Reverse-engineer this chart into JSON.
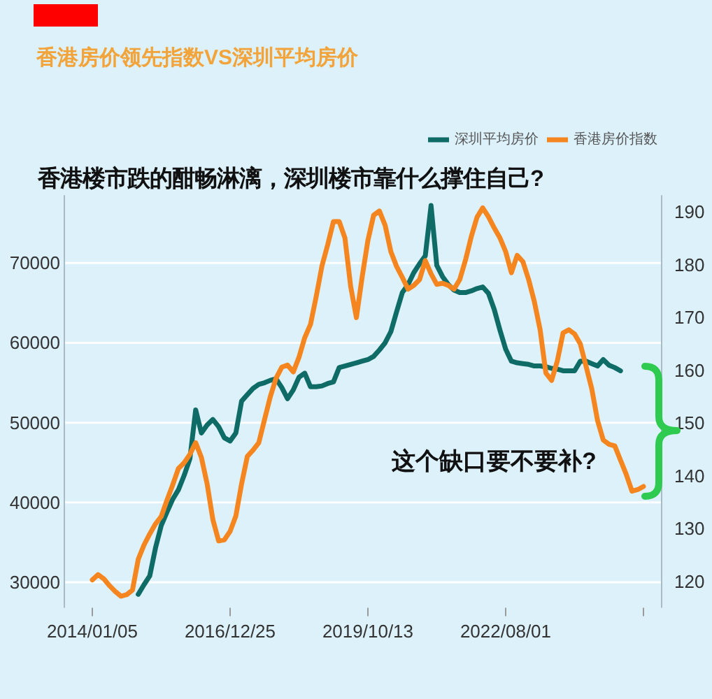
{
  "chart_data": {
    "type": "line",
    "title": "香港房价领先指数VS深圳平均房价",
    "subtitle": "香港楼市跌的酣畅淋漓，深圳楼市靠什么撑住自己?",
    "annotations": [
      "这个缺口要不要补?"
    ],
    "categories": [
      "2014/01/05",
      null,
      null,
      null,
      null,
      null,
      null,
      null,
      null,
      null,
      null,
      null,
      null,
      null,
      null,
      null,
      null,
      null,
      null,
      null,
      null,
      null,
      null,
      null,
      "2016/12/25",
      null,
      null,
      null,
      null,
      null,
      null,
      null,
      null,
      null,
      null,
      null,
      null,
      null,
      null,
      null,
      null,
      null,
      null,
      null,
      null,
      null,
      null,
      null,
      "2019/10/13",
      null,
      null,
      null,
      null,
      null,
      null,
      null,
      null,
      null,
      null,
      null,
      null,
      null,
      null,
      null,
      null,
      null,
      null,
      null,
      null,
      null,
      null,
      null,
      "2022/08/01",
      null,
      null,
      null,
      null,
      null,
      null,
      null,
      null,
      null,
      null,
      null,
      null,
      null,
      null,
      null,
      null,
      null,
      null,
      null,
      null,
      null,
      null,
      null,
      null
    ],
    "series": [
      {
        "name": "深圳平均房价",
        "color": "#0f6b66",
        "values": [
          null,
          null,
          null,
          null,
          null,
          null,
          null,
          null,
          28500,
          29700,
          30800,
          34300,
          37100,
          38800,
          40400,
          41600,
          43400,
          45500,
          51600,
          48700,
          49700,
          50400,
          49500,
          48100,
          47700,
          48700,
          52700,
          53500,
          54300,
          54800,
          55000,
          55300,
          55500,
          54400,
          53000,
          54100,
          55700,
          56200,
          54500,
          54500,
          54600,
          54900,
          55100,
          56900,
          57100,
          57300,
          57500,
          57700,
          57900,
          58300,
          59100,
          60000,
          61400,
          63900,
          66300,
          67300,
          68800,
          69900,
          70900,
          77200,
          69700,
          68300,
          67300,
          66600,
          66300,
          66300,
          66500,
          66800,
          67000,
          66200,
          64200,
          61600,
          59200,
          57700,
          57500,
          57400,
          57300,
          57100,
          57100,
          57000,
          56800,
          56700,
          56500,
          56500,
          56500,
          57700,
          57700,
          57400,
          57100,
          57900,
          57200,
          56900,
          56500,
          null,
          null,
          null,
          null
        ]
      },
      {
        "name": "香港房价指数",
        "color": "#f5861f",
        "axis": "y2",
        "values": [
          120.3,
          121.3,
          120.5,
          119.2,
          118.1,
          117.2,
          117.5,
          118.4,
          124.2,
          126.9,
          129.0,
          130.9,
          132.3,
          135.4,
          138.3,
          141.4,
          142.5,
          144.1,
          146.3,
          143.5,
          138.5,
          131.7,
          127.7,
          127.9,
          129.5,
          132.4,
          138.5,
          143.7,
          144.9,
          146.3,
          150.7,
          155.0,
          158.5,
          160.6,
          161.0,
          159.7,
          162.5,
          166.2,
          168.7,
          174.0,
          179.8,
          183.8,
          188.2,
          188.2,
          185.1,
          175.9,
          170.0,
          177.7,
          184.6,
          189.4,
          190.2,
          187.5,
          182.5,
          179.7,
          177.6,
          175.4,
          176.1,
          177.2,
          180.8,
          178.3,
          176.3,
          176.5,
          176.1,
          175.4,
          177.2,
          180.9,
          185.3,
          189.0,
          190.8,
          189.1,
          187.0,
          185.1,
          182.5,
          178.5,
          181.8,
          180.6,
          177.2,
          173.0,
          167.7,
          159.5,
          158.1,
          161.8,
          167.1,
          167.7,
          166.9,
          165.0,
          160.8,
          156.5,
          150.5,
          146.8,
          146.0,
          145.7,
          143.0,
          140.3,
          137.1,
          137.4,
          138.0
        ]
      }
    ],
    "ylim": [
      26800,
      78500
    ],
    "yticks": [
      30000,
      40000,
      50000,
      60000,
      70000
    ],
    "y2lim": [
      115,
      193.2
    ],
    "y2ticks": [
      120,
      130,
      140,
      150,
      160,
      170,
      180,
      190
    ],
    "grid": "y",
    "legend": "top right"
  }
}
